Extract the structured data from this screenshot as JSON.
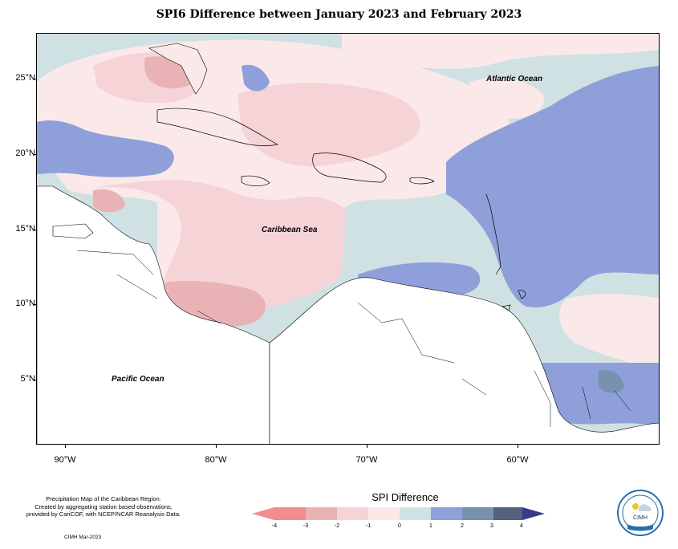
{
  "title": "SPI6 Difference between January 2023 and February 2023",
  "map": {
    "labels": {
      "atlantic": "Atlantic Ocean",
      "caribbean": "Caribbean Sea",
      "pacific": "Pacific Ocean"
    },
    "lat_ticks": [
      "25°N",
      "20°N",
      "15°N",
      "10°N",
      "5°N"
    ],
    "lon_ticks": [
      "90°W",
      "80°W",
      "70°W",
      "60°W"
    ]
  },
  "caption": {
    "line1": "Precipitation Map of the Caribbean Region.",
    "line2": "Created by aggregating station based observations,",
    "line3": "provided by CariCOF, with NCEP/NCAR Reanalysis Data.",
    "credit": "CIMH Mar-2023"
  },
  "legend": {
    "title": "SPI Difference",
    "ticks": [
      "-4",
      "-3",
      "-2",
      "-1",
      "0",
      "1",
      "2",
      "3",
      "4"
    ],
    "colors": [
      "#f38c8e",
      "#e9b3b6",
      "#f6d3d7",
      "#fbe9ea",
      "#cfe1e3",
      "#8f9fda",
      "#7892ae",
      "#56607f",
      "#3a3a8a"
    ]
  },
  "logo": {
    "text": "CIMH"
  }
}
